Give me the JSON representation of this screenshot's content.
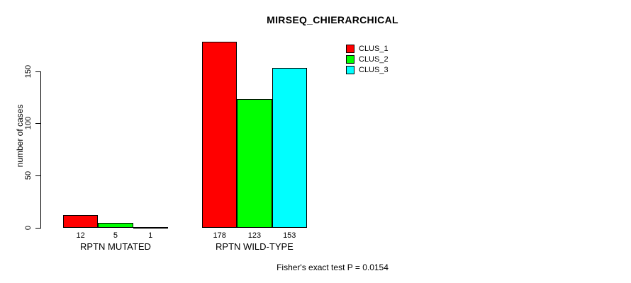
{
  "title": "MIRSEQ_CHIERARCHICAL",
  "footer": "Fisher's exact test P = 0.0154",
  "colors": {
    "clus_1": "#ff0000",
    "clus_2": "#00ff00",
    "clus_3": "#00ffff",
    "axis": "#000000",
    "background": "#ffffff"
  },
  "chart_data": {
    "type": "bar",
    "title": "MIRSEQ_CHIERARCHICAL",
    "xlabel": "",
    "ylabel": "number of cases",
    "ylim": [
      0,
      150
    ],
    "yticks": [
      0,
      50,
      100,
      150
    ],
    "grid": false,
    "legend_position": "top-right-inside",
    "categories": [
      "RPTN MUTATED",
      "RPTN WILD-TYPE"
    ],
    "series": [
      {
        "name": "CLUS_1",
        "color": "#ff0000",
        "values": [
          12,
          178
        ]
      },
      {
        "name": "CLUS_2",
        "color": "#00ff00",
        "values": [
          5,
          123
        ]
      },
      {
        "name": "CLUS_3",
        "color": "#00ffff",
        "values": [
          1,
          153
        ]
      }
    ],
    "bar_value_labels": [
      [
        "12",
        "5",
        "1"
      ],
      [
        "178",
        "123",
        "153"
      ]
    ],
    "annotation": "Fisher's exact test P = 0.0154"
  }
}
